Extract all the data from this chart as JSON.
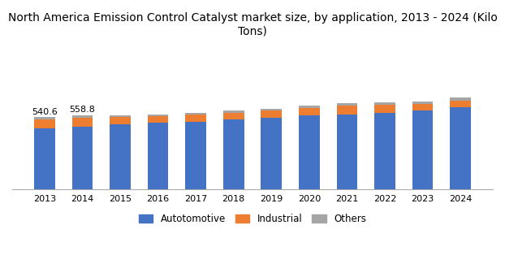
{
  "title": "North America Emission Control Catalyst market size, by application, 2013 - 2024 (Kilo\nTons)",
  "years": [
    2013,
    2014,
    2015,
    2016,
    2017,
    2018,
    2019,
    2020,
    2021,
    2022,
    2023,
    2024
  ],
  "automotive": [
    455,
    470,
    490,
    500,
    510,
    525,
    540,
    555,
    565,
    575,
    595,
    615
  ],
  "industrial": [
    68,
    70,
    52,
    50,
    52,
    52,
    50,
    58,
    62,
    58,
    48,
    52
  ],
  "others": [
    18,
    19,
    15,
    14,
    14,
    16,
    17,
    16,
    20,
    20,
    20,
    22
  ],
  "annotations": {
    "2013": "540.6",
    "2014": "558.8"
  },
  "colors": {
    "automotive": "#4472C4",
    "industrial": "#ED7D31",
    "others": "#A5A5A5"
  },
  "legend_labels": [
    "Autotomotive",
    "Industrial",
    "Others"
  ],
  "background_color": "#FFFFFF",
  "ylim": [
    0,
    1100
  ],
  "bar_width": 0.55
}
